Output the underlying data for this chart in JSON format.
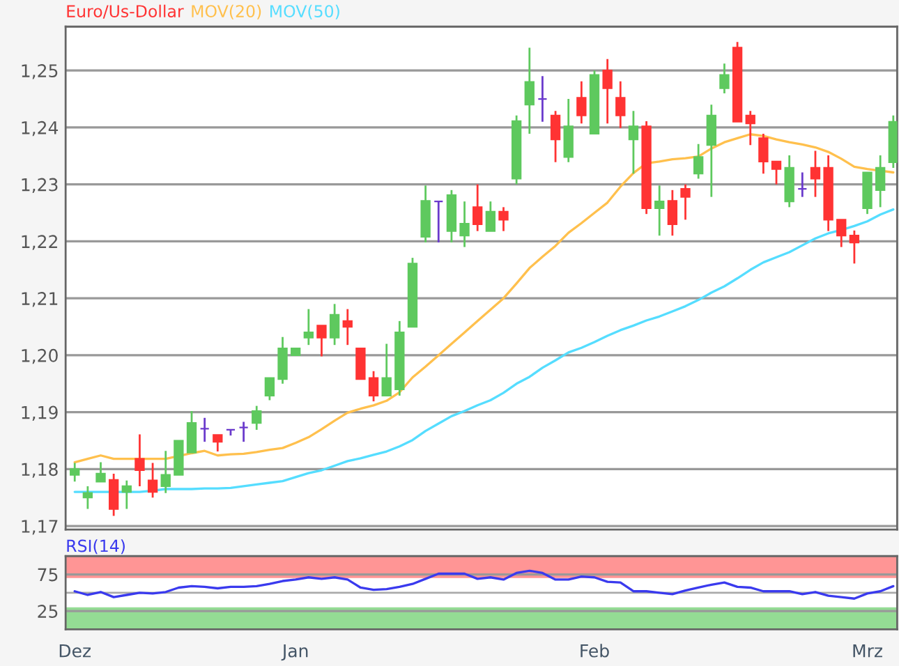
{
  "chart_data": [
    {
      "type": "candlestick",
      "categories": [
        null,
        null,
        null,
        null,
        null,
        null,
        null,
        null,
        null,
        null,
        null,
        null,
        null,
        null,
        null,
        null,
        null,
        null,
        null,
        null,
        null,
        null,
        null,
        null,
        null,
        null,
        null,
        null,
        null,
        null,
        null,
        null,
        null,
        null,
        null,
        null,
        null,
        null,
        null,
        null,
        null,
        null,
        null,
        null,
        null,
        null,
        null,
        null,
        null,
        null,
        null,
        null,
        null,
        null,
        null,
        null,
        null,
        null,
        null,
        null,
        null,
        null,
        null,
        null
      ],
      "series": [
        {
          "name": "Euro/Us-Dollar",
          "type": "candlestick",
          "color": "#ff3333",
          "ohlc": [
            [
              1.179,
              1.1811,
              1.1778,
              1.18
            ],
            [
              1.175,
              1.177,
              1.173,
              1.1758
            ],
            [
              1.1778,
              1.1812,
              1.1778,
              1.1792
            ],
            [
              1.1781,
              1.1792,
              1.1718,
              1.173
            ],
            [
              1.176,
              1.178,
              1.173,
              1.177
            ],
            [
              1.1818,
              1.1861,
              1.177,
              1.1798
            ],
            [
              1.178,
              1.1811,
              1.175,
              1.176
            ],
            [
              1.177,
              1.1832,
              1.1758,
              1.179
            ],
            [
              1.179,
              1.185,
              1.179,
              1.185
            ],
            [
              1.1829,
              1.1902,
              1.1829,
              1.1881
            ],
            [
              1.1871,
              1.189,
              1.1848,
              1.1871
            ],
            [
              1.186,
              1.186,
              1.1831,
              1.1848
            ],
            [
              1.1869,
              1.1869,
              1.1859,
              1.1869
            ],
            [
              1.1873,
              1.1883,
              1.1848,
              1.1873
            ],
            [
              1.1881,
              1.1911,
              1.1869,
              1.1902
            ],
            [
              1.1929,
              1.196,
              1.1921,
              1.196
            ],
            [
              1.1958,
              1.2032,
              1.195,
              1.2012
            ],
            [
              1.2,
              1.2012,
              1.2,
              1.2012
            ],
            [
              1.2031,
              1.2081,
              1.2018,
              1.204
            ],
            [
              1.2052,
              1.2052,
              1.1998,
              1.2031
            ],
            [
              1.2031,
              1.209,
              1.2018,
              1.2071
            ],
            [
              1.206,
              1.2081,
              1.2018,
              1.205
            ],
            [
              1.2012,
              1.2012,
              1.1958,
              1.1958
            ],
            [
              1.196,
              1.1972,
              1.1919,
              1.1929
            ],
            [
              1.1929,
              1.202,
              1.1929,
              1.196
            ],
            [
              1.194,
              1.206,
              1.1929,
              1.204
            ],
            [
              1.205,
              1.2171,
              1.205,
              1.2161
            ],
            [
              1.2208,
              1.2298,
              1.2198,
              1.2271
            ],
            [
              1.227,
              1.227,
              1.2198,
              1.227
            ],
            [
              1.2218,
              1.229,
              1.2198,
              1.2281
            ],
            [
              1.221,
              1.227,
              1.219,
              1.2231
            ],
            [
              1.226,
              1.23,
              1.2218,
              1.223
            ],
            [
              1.2218,
              1.227,
              1.2218,
              1.2252
            ],
            [
              1.2252,
              1.226,
              1.2218,
              1.2238
            ],
            [
              1.231,
              1.2421,
              1.23,
              1.2411
            ],
            [
              1.244,
              1.254,
              1.2389,
              1.248
            ],
            [
              1.245,
              1.249,
              1.241,
              1.245
            ],
            [
              1.2421,
              1.2429,
              1.2339,
              1.2379
            ],
            [
              1.2348,
              1.245,
              1.2339,
              1.2402
            ],
            [
              1.2452,
              1.2481,
              1.2407,
              1.2421
            ],
            [
              1.2389,
              1.25,
              1.2389,
              1.2492
            ],
            [
              1.25,
              1.252,
              1.2407,
              1.2469
            ],
            [
              1.2452,
              1.2481,
              1.2399,
              1.2421
            ],
            [
              1.2379,
              1.2429,
              1.2319,
              1.2402
            ],
            [
              1.2402,
              1.2411,
              1.2248,
              1.2258
            ],
            [
              1.2258,
              1.2298,
              1.221,
              1.227
            ],
            [
              1.2271,
              1.229,
              1.221,
              1.223
            ],
            [
              1.2292,
              1.23,
              1.2238,
              1.2278
            ],
            [
              1.2319,
              1.2371,
              1.231,
              1.2348
            ],
            [
              1.2369,
              1.244,
              1.2278,
              1.2421
            ],
            [
              1.2469,
              1.2512,
              1.246,
              1.2492
            ],
            [
              1.254,
              1.255,
              1.241,
              1.241
            ],
            [
              1.2421,
              1.2429,
              1.2369,
              1.2407
            ],
            [
              1.2381,
              1.2389,
              1.2319,
              1.234
            ],
            [
              1.234,
              1.234,
              1.23,
              1.2327
            ],
            [
              1.227,
              1.2351,
              1.226,
              1.2329
            ],
            [
              1.2292,
              1.2321,
              1.2278,
              1.2292
            ],
            [
              1.2329,
              1.2359,
              1.2278,
              1.231
            ],
            [
              1.2329,
              1.2351,
              1.2218,
              1.2238
            ],
            [
              1.2238,
              1.2238,
              1.219,
              1.221
            ],
            [
              1.221,
              1.2219,
              1.2161,
              1.2198
            ],
            [
              1.2258,
              1.2321,
              1.2248,
              1.2321
            ],
            [
              1.229,
              1.2351,
              1.226,
              1.2329
            ],
            [
              1.2339,
              1.2421,
              1.2329,
              1.241
            ]
          ],
          "colors": [
            "#5ec95e",
            "#5ec95e",
            "#5ec95e",
            "#ff3333",
            "#5ec95e",
            "#ff3333",
            "#ff3333",
            "#5ec95e",
            "#5ec95e",
            "#5ec95e",
            "#6a3acc",
            "#ff3333",
            "#6a3acc",
            "#6a3acc",
            "#5ec95e",
            "#5ec95e",
            "#5ec95e",
            "#5ec95e",
            "#5ec95e",
            "#ff3333",
            "#5ec95e",
            "#ff3333",
            "#ff3333",
            "#ff3333",
            "#5ec95e",
            "#5ec95e",
            "#5ec95e",
            "#5ec95e",
            "#6a3acc",
            "#5ec95e",
            "#5ec95e",
            "#ff3333",
            "#5ec95e",
            "#ff3333",
            "#5ec95e",
            "#5ec95e",
            "#6a3acc",
            "#ff3333",
            "#5ec95e",
            "#ff3333",
            "#5ec95e",
            "#ff3333",
            "#ff3333",
            "#5ec95e",
            "#ff3333",
            "#5ec95e",
            "#ff3333",
            "#ff3333",
            "#5ec95e",
            "#5ec95e",
            "#5ec95e",
            "#ff3333",
            "#ff3333",
            "#ff3333",
            "#ff3333",
            "#5ec95e",
            "#6a3acc",
            "#ff3333",
            "#ff3333",
            "#ff3333",
            "#ff3333",
            "#5ec95e",
            "#5ec95e",
            "#5ec95e"
          ]
        },
        {
          "name": "MOV(20)",
          "type": "line",
          "color": "#ffc04d",
          "values": [
            1.1812,
            1.1818,
            1.1824,
            1.1818,
            1.1818,
            1.1818,
            1.1818,
            1.1818,
            1.1823,
            1.1828,
            1.1832,
            1.1824,
            1.1826,
            1.1827,
            1.183,
            1.1834,
            1.1837,
            1.1846,
            1.1856,
            1.187,
            1.1885,
            1.1899,
            1.1906,
            1.1912,
            1.192,
            1.1935,
            1.1961,
            1.198,
            1.2,
            1.202,
            1.204,
            1.206,
            1.208,
            1.21,
            1.2126,
            1.2153,
            1.2173,
            1.2192,
            1.2215,
            1.2232,
            1.225,
            1.2268,
            1.2296,
            1.232,
            1.2337,
            1.234,
            1.2344,
            1.2346,
            1.2349,
            1.2363,
            1.2374,
            1.2381,
            1.2388,
            1.2385,
            1.2379,
            1.2374,
            1.237,
            1.2365,
            1.2357,
            1.2345,
            1.2331,
            1.2327,
            1.2324,
            1.2321
          ]
        },
        {
          "name": "MOV(50)",
          "type": "line",
          "color": "#55ddff",
          "values": [
            1.176,
            1.176,
            1.176,
            1.176,
            1.176,
            1.176,
            1.1762,
            1.1765,
            1.1765,
            1.1765,
            1.1766,
            1.1766,
            1.1767,
            1.177,
            1.1773,
            1.1776,
            1.1779,
            1.1786,
            1.1793,
            1.1798,
            1.1806,
            1.1814,
            1.1819,
            1.1825,
            1.1831,
            1.184,
            1.1851,
            1.1867,
            1.188,
            1.1893,
            1.1902,
            1.1912,
            1.1921,
            1.1934,
            1.195,
            1.1962,
            1.1978,
            1.1991,
            1.2005,
            1.2013,
            1.2023,
            1.2034,
            1.2044,
            1.2052,
            1.2061,
            1.2068,
            1.2077,
            1.2086,
            1.2097,
            1.211,
            1.2121,
            1.2135,
            1.215,
            1.2163,
            1.2172,
            1.2181,
            1.2193,
            1.2205,
            1.2214,
            1.222,
            1.2227,
            1.2235,
            1.2247,
            1.2256
          ]
        }
      ],
      "ylim": [
        1.1694,
        1.2577
      ],
      "yticks": [
        {
          "value": 1.17,
          "label": "1,17"
        },
        {
          "value": 1.18,
          "label": "1,18"
        },
        {
          "value": 1.19,
          "label": "1,19"
        },
        {
          "value": 1.2,
          "label": "1,20"
        },
        {
          "value": 1.21,
          "label": "1,21"
        },
        {
          "value": 1.22,
          "label": "1,22"
        },
        {
          "value": 1.23,
          "label": "1,23"
        },
        {
          "value": 1.24,
          "label": "1,24"
        },
        {
          "value": 1.25,
          "label": "1,25"
        }
      ],
      "tick_labels": "y",
      "grid": "y",
      "legend": "top left"
    },
    {
      "type": "line",
      "categories": [
        "Dez",
        null,
        null,
        null,
        null,
        null,
        null,
        null,
        null,
        null,
        null,
        null,
        null,
        null,
        null,
        null,
        null,
        "Jan",
        null,
        null,
        null,
        null,
        null,
        null,
        null,
        null,
        null,
        null,
        null,
        null,
        null,
        null,
        null,
        null,
        null,
        null,
        null,
        null,
        null,
        null,
        "Feb",
        null,
        null,
        null,
        null,
        null,
        null,
        null,
        null,
        null,
        null,
        null,
        null,
        null,
        null,
        null,
        null,
        null,
        null,
        null,
        null,
        "Mrz",
        null,
        null
      ],
      "series": [
        {
          "name": "RSI(14)",
          "color": "#3a3aee",
          "values": [
            52,
            47,
            51,
            44,
            47,
            50,
            49,
            51,
            57,
            59,
            58,
            56,
            58,
            58,
            59,
            62,
            66,
            68,
            71,
            69,
            71,
            68,
            57,
            54,
            55,
            58,
            62,
            69,
            76,
            76,
            76,
            69,
            71,
            68,
            77,
            80,
            77,
            68,
            68,
            72,
            71,
            65,
            64,
            52,
            52,
            50,
            48,
            53,
            57,
            61,
            64,
            58,
            57,
            52,
            52,
            52,
            48,
            51,
            46,
            44,
            42,
            49,
            52,
            59
          ]
        }
      ],
      "ylim": [
        0,
        100
      ],
      "yticks": [
        25,
        75
      ],
      "bands": [
        {
          "axis": "y",
          "from": 70,
          "to": 100,
          "color": "#ff8a8a"
        },
        {
          "axis": "y",
          "from": 0,
          "to": 30,
          "color": "#88d888"
        }
      ],
      "ref_lines": [
        {
          "axis": "y",
          "value": 50,
          "color": "#aaaaaa"
        }
      ],
      "grid": "y",
      "legend": "top left"
    }
  ]
}
